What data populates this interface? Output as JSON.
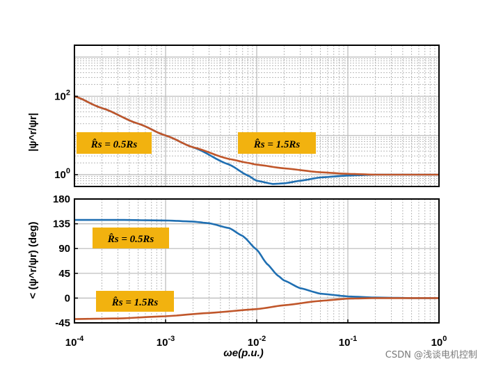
{
  "watermark": "CSDN @浅谈电机控制",
  "colors": {
    "series_0_5": "#1f6fb2",
    "series_1_5": "#c0562a",
    "label_bg": "#f2b20f",
    "grid": "#b8b8b8"
  },
  "chart_data": [
    {
      "type": "line",
      "panel": "magnitude",
      "ylabel": "|ψ^r/ψr|",
      "xscale": "log",
      "yscale": "log",
      "xlim": [
        0.0001,
        1
      ],
      "ylim": [
        0.5,
        2000
      ],
      "yticks": [
        {
          "value": 100,
          "label": "10^2"
        },
        {
          "value": 1,
          "label": "10^0"
        }
      ],
      "grid": true,
      "series": [
        {
          "name": "R̂s = 0.5Rs",
          "color": "#1f6fb2",
          "x": [
            0.0001,
            0.0002,
            0.0005,
            0.001,
            0.002,
            0.005,
            0.008,
            0.01,
            0.015,
            0.02,
            0.03,
            0.05,
            0.1,
            0.2,
            0.5,
            1
          ],
          "y": [
            100,
            50,
            20,
            10,
            5,
            1.8,
            0.95,
            0.7,
            0.58,
            0.6,
            0.7,
            0.85,
            0.95,
            1.0,
            1.0,
            1.0
          ]
        },
        {
          "name": "R̂s = 1.5Rs",
          "color": "#c0562a",
          "x": [
            0.0001,
            0.0002,
            0.0005,
            0.001,
            0.002,
            0.005,
            0.008,
            0.01,
            0.02,
            0.05,
            0.1,
            0.2,
            0.5,
            1
          ],
          "y": [
            100,
            50,
            20,
            10,
            5,
            2.5,
            2.0,
            1.8,
            1.45,
            1.15,
            1.05,
            1.0,
            1.0,
            1.0
          ]
        }
      ]
    },
    {
      "type": "line",
      "panel": "phase",
      "ylabel": "< (ψ^r/ψr) (deg)",
      "xlabel": "ωe(p.u.)",
      "xscale": "log",
      "xlim": [
        0.0001,
        1
      ],
      "ylim": [
        -45,
        180
      ],
      "yticks": [
        {
          "value": 180,
          "label": "180"
        },
        {
          "value": 135,
          "label": "135"
        },
        {
          "value": 90,
          "label": "90"
        },
        {
          "value": 45,
          "label": "45"
        },
        {
          "value": 0,
          "label": "0"
        },
        {
          "value": -45,
          "label": "-45"
        }
      ],
      "xticks": [
        {
          "value": 0.0001,
          "label": "10^-4"
        },
        {
          "value": 0.001,
          "label": "10^-3"
        },
        {
          "value": 0.01,
          "label": "10^-2"
        },
        {
          "value": 0.1,
          "label": "10^-1"
        },
        {
          "value": 1,
          "label": "10^0"
        }
      ],
      "grid": true,
      "series": [
        {
          "name": "R̂s = 0.5Rs",
          "color": "#1f6fb2",
          "x": [
            0.0001,
            0.0003,
            0.001,
            0.002,
            0.003,
            0.005,
            0.007,
            0.01,
            0.013,
            0.017,
            0.02,
            0.03,
            0.05,
            0.1,
            0.2,
            0.5,
            1
          ],
          "y": [
            142,
            142,
            141,
            139,
            136,
            127,
            113,
            88,
            62,
            41,
            32,
            18,
            8,
            3,
            1,
            0,
            0
          ]
        },
        {
          "name": "R̂s = 1.5Rs",
          "color": "#c0562a",
          "x": [
            0.0001,
            0.0003,
            0.001,
            0.003,
            0.01,
            0.02,
            0.05,
            0.1,
            0.2,
            0.5,
            1
          ],
          "y": [
            -38,
            -37,
            -33,
            -27,
            -20,
            -13,
            -5,
            -1,
            0,
            0,
            0
          ]
        }
      ]
    }
  ],
  "annotations": [
    {
      "panel": 0,
      "text": "R̂s = 0.5Rs"
    },
    {
      "panel": 0,
      "text": "R̂s = 1.5Rs"
    },
    {
      "panel": 1,
      "text": "R̂s = 0.5Rs"
    },
    {
      "panel": 1,
      "text": "R̂s = 1.5Rs"
    }
  ]
}
